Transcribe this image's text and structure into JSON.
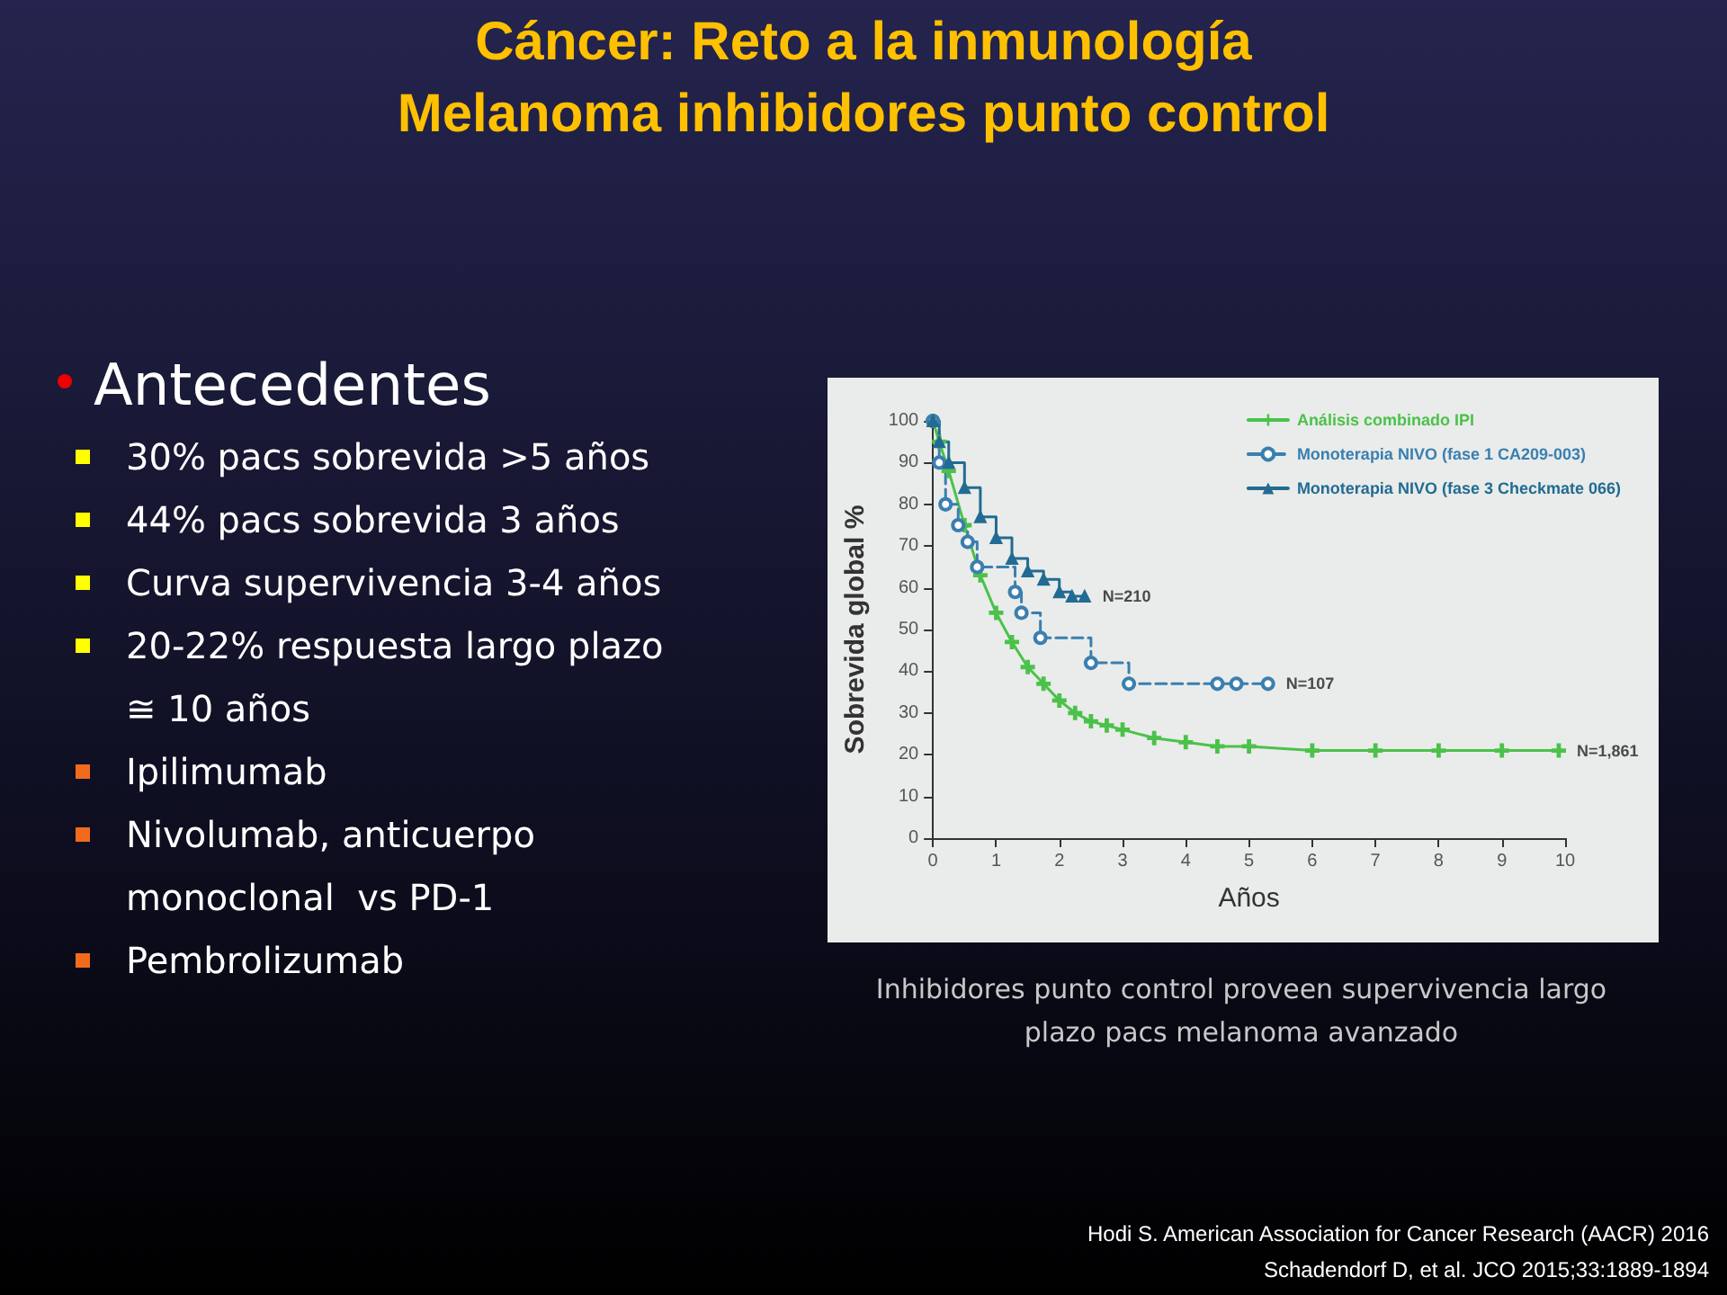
{
  "chart_data": {
    "type": "line",
    "title": "Cáncer: Reto a la inmunología",
    "subtitle": "Melanoma inhibidores punto control",
    "xlabel": "Años",
    "ylabel": "Sobrevida global %",
    "xlim": [
      0,
      10
    ],
    "xticks": [
      0,
      1,
      2,
      3,
      4,
      5,
      6,
      7,
      8,
      9,
      10
    ],
    "ylim": [
      0,
      100
    ],
    "yticks": [
      0,
      10,
      20,
      30,
      40,
      50,
      60,
      70,
      80,
      90,
      100
    ],
    "grid": false,
    "legend": "top right",
    "series": [
      {
        "name": "Análisis combinado IPI",
        "color": "#4cc14a",
        "marker": "cross",
        "line_style": "solid",
        "x": [
          0,
          0.1,
          0.25,
          0.5,
          0.75,
          1,
          1.25,
          1.5,
          1.75,
          2,
          2.25,
          2.5,
          2.75,
          3,
          3.5,
          4,
          4.5,
          5,
          6,
          7,
          8,
          9,
          9.9
        ],
        "values": [
          100,
          95,
          88,
          75,
          63,
          54,
          47,
          41,
          37,
          33,
          30,
          28,
          27,
          26,
          24,
          23,
          22,
          22,
          21,
          21,
          21,
          21,
          21
        ]
      },
      {
        "name": "Monoterapia NIVO (fase 1 CA209-003)",
        "type": "step",
        "color": "#3a7fb0",
        "marker": "circle",
        "line_style": "dashed",
        "x": [
          0,
          0.1,
          0.2,
          0.4,
          0.55,
          0.7,
          1.3,
          1.4,
          1.7,
          2.5,
          3.1,
          4.5,
          4.8,
          5.3
        ],
        "values": [
          100,
          90,
          80,
          75,
          71,
          65,
          59,
          54,
          48,
          42,
          37,
          37,
          37,
          37
        ]
      },
      {
        "name": "Monoterapia NIVO (fase 3 Checkmate 066)",
        "type": "step",
        "color": "#226b93",
        "marker": "triangle",
        "line_style": "solid",
        "x": [
          0,
          0.1,
          0.25,
          0.5,
          0.75,
          1,
          1.25,
          1.5,
          1.75,
          2,
          2.2,
          2.4
        ],
        "values": [
          100,
          95,
          90,
          84,
          77,
          72,
          67,
          64,
          62,
          59,
          58,
          58
        ]
      }
    ],
    "annotations": [
      {
        "text": "N=210",
        "x": 2.4,
        "y": 58
      },
      {
        "text": "N=107",
        "x": 5.3,
        "y": 37
      },
      {
        "text": "N=1,861",
        "x": 9.9,
        "y": 21
      },
      "Antecedentes",
      "30% pacs sobrevida >5 años",
      "44% pacs sobrevida 3 años",
      "Curva supervivencia 3-4 años",
      "20-22% respuesta largo plazo ≅ 10 años",
      "Ipilimumab",
      "Nivolumab, anticuerpo monoclonal  vs PD-1",
      "Pembrolizumab",
      "Inhibidores punto control proveen supervivencia largo plazo pacs melanoma avanzado",
      "Hodi S. American Association for Cancer Research (AACR) 2016",
      "Schadendorf  D, et al. JCO 2015;33:1889-1894"
    ]
  }
}
